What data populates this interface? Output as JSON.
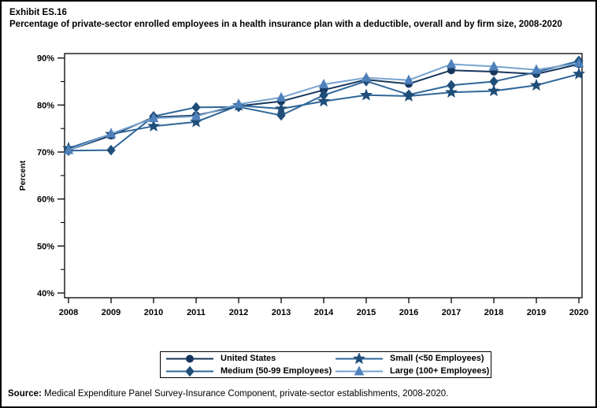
{
  "page": {
    "exhibit_label": "Exhibit ES.16",
    "title": "Percentage of private-sector enrolled employees in a health insurance plan with a deductible, overall and by firm size, 2008-2020",
    "source_label": "Source:",
    "source_text": " Medical Expenditure Panel Survey-Insurance Component, private-sector establishments, 2008-2020."
  },
  "chart_data": {
    "type": "line",
    "title": "Percentage of private-sector enrolled employees in a health insurance plan with a deductible, overall and by firm size, 2008-2020",
    "xlabel": "",
    "ylabel": "Percent",
    "x": [
      2008,
      2009,
      2010,
      2011,
      2012,
      2013,
      2014,
      2015,
      2016,
      2017,
      2018,
      2019,
      2020
    ],
    "ylim": [
      40,
      90
    ],
    "yticks_major": [
      40,
      50,
      60,
      70,
      80,
      90
    ],
    "yticks_minor": [
      45,
      55,
      65,
      75,
      85
    ],
    "ytick_suffix": "%",
    "grid": false,
    "legend_position": "bottom",
    "legend_display_order": [
      0,
      2,
      1,
      3
    ],
    "series": [
      {
        "name": "United States",
        "marker": "circle",
        "marker_color": "#17365D",
        "line_color": "#17365D",
        "values": [
          70.4,
          73.5,
          77.4,
          77.8,
          79.8,
          80.8,
          83.2,
          85.4,
          84.5,
          87.4,
          87.1,
          86.6,
          88.7
        ]
      },
      {
        "name": "Medium (50-99 Employees)",
        "marker": "diamond",
        "marker_color": "#1F4E79",
        "line_color": "#2F6699",
        "values": [
          70.3,
          70.4,
          77.6,
          79.5,
          79.6,
          77.8,
          82.1,
          85.1,
          82.2,
          84.2,
          85.0,
          87.0,
          89.4
        ]
      },
      {
        "name": "Small (<50 Employees)",
        "marker": "star",
        "marker_color": "#1F4E79",
        "line_color": "#2F6699",
        "values": [
          70.8,
          73.8,
          75.5,
          76.4,
          79.9,
          79.2,
          80.8,
          82.1,
          81.9,
          82.7,
          83.0,
          84.2,
          86.6
        ]
      },
      {
        "name": "Large (100+ Employees)",
        "marker": "triangle",
        "marker_color": "#4F81BB",
        "line_color": "#76A3CF",
        "values": [
          70.4,
          73.9,
          77.2,
          77.6,
          80.2,
          81.6,
          84.4,
          85.8,
          85.3,
          88.7,
          88.2,
          87.5,
          88.9
        ]
      }
    ]
  }
}
